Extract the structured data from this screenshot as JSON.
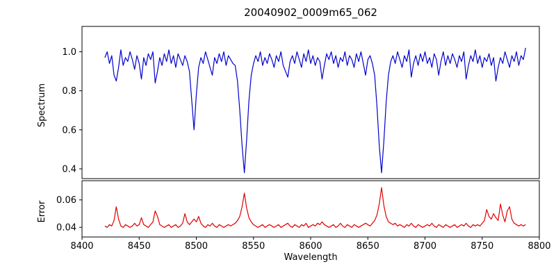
{
  "figure": {
    "title": "20040902_0009m65_062",
    "background": "#ffffff",
    "text_color": "#000000"
  },
  "chart_data": [
    {
      "type": "line",
      "name": "spectrum",
      "ylabel": "Spectrum",
      "color": "#0000cd",
      "xlim": [
        8400,
        8800
      ],
      "ylim": [
        0.35,
        1.13
      ],
      "ytick_values": [
        1.0,
        0.8,
        0.6,
        0.4
      ],
      "ytick_labels": [
        "1.0",
        "0.8",
        "0.6",
        "0.4"
      ],
      "x_start": 8420,
      "x_step": 2,
      "y": [
        0.97,
        1.0,
        0.94,
        0.98,
        0.88,
        0.85,
        0.92,
        1.01,
        0.93,
        0.97,
        0.95,
        1.0,
        0.96,
        0.91,
        0.98,
        0.94,
        0.86,
        0.97,
        0.93,
        0.99,
        0.96,
        1.0,
        0.84,
        0.9,
        0.97,
        0.93,
        0.99,
        0.95,
        1.01,
        0.94,
        0.98,
        0.92,
        0.99,
        0.96,
        0.93,
        0.98,
        0.95,
        0.9,
        0.75,
        0.6,
        0.78,
        0.92,
        0.97,
        0.94,
        1.0,
        0.96,
        0.92,
        0.88,
        0.97,
        0.94,
        0.99,
        0.95,
        1.0,
        0.93,
        0.98,
        0.96,
        0.94,
        0.93,
        0.85,
        0.7,
        0.52,
        0.38,
        0.55,
        0.75,
        0.88,
        0.94,
        0.98,
        0.95,
        1.0,
        0.93,
        0.97,
        0.94,
        0.99,
        0.96,
        0.92,
        0.98,
        0.95,
        1.0,
        0.93,
        0.9,
        0.87,
        0.95,
        0.98,
        0.94,
        1.0,
        0.96,
        0.92,
        0.99,
        0.95,
        1.01,
        0.94,
        0.98,
        0.93,
        0.97,
        0.95,
        0.86,
        0.93,
        0.99,
        0.96,
        1.0,
        0.94,
        0.98,
        0.92,
        0.97,
        0.95,
        1.0,
        0.93,
        0.98,
        0.96,
        0.92,
        0.99,
        0.95,
        1.0,
        0.94,
        0.88,
        0.96,
        0.98,
        0.94,
        0.88,
        0.72,
        0.52,
        0.38,
        0.54,
        0.74,
        0.88,
        0.95,
        0.98,
        0.94,
        1.0,
        0.96,
        0.92,
        0.98,
        0.95,
        1.01,
        0.87,
        0.94,
        0.98,
        0.93,
        0.99,
        0.95,
        1.0,
        0.94,
        0.97,
        0.92,
        0.99,
        0.96,
        0.88,
        0.95,
        1.0,
        0.93,
        0.98,
        0.94,
        0.99,
        0.96,
        0.92,
        0.98,
        0.95,
        1.0,
        0.86,
        0.93,
        0.98,
        0.95,
        1.01,
        0.94,
        0.98,
        0.92,
        0.97,
        0.95,
        0.99,
        0.93,
        0.97,
        0.85,
        0.92,
        0.97,
        0.94,
        1.0,
        0.96,
        0.92,
        0.98,
        0.95,
        1.0,
        0.93,
        0.98,
        0.96,
        1.02
      ]
    },
    {
      "type": "line",
      "name": "error",
      "ylabel": "Error",
      "xlabel": "Wavelength",
      "color": "#e00000",
      "xlim": [
        8400,
        8800
      ],
      "ylim": [
        0.033,
        0.074
      ],
      "ytick_values": [
        0.06,
        0.04
      ],
      "ytick_labels": [
        "0.06",
        "0.04"
      ],
      "xtick_values": [
        8400,
        8450,
        8500,
        8550,
        8600,
        8650,
        8700,
        8750,
        8800
      ],
      "xtick_labels": [
        "8400",
        "8450",
        "8500",
        "8550",
        "8600",
        "8650",
        "8700",
        "8750",
        "8800"
      ],
      "x_start": 8420,
      "x_step": 2,
      "y": [
        0.041,
        0.04,
        0.042,
        0.041,
        0.045,
        0.055,
        0.046,
        0.041,
        0.04,
        0.042,
        0.041,
        0.04,
        0.041,
        0.043,
        0.041,
        0.042,
        0.047,
        0.042,
        0.041,
        0.04,
        0.042,
        0.044,
        0.052,
        0.048,
        0.042,
        0.041,
        0.04,
        0.041,
        0.042,
        0.04,
        0.041,
        0.042,
        0.04,
        0.041,
        0.043,
        0.05,
        0.044,
        0.042,
        0.044,
        0.046,
        0.044,
        0.048,
        0.043,
        0.041,
        0.04,
        0.042,
        0.041,
        0.043,
        0.041,
        0.04,
        0.042,
        0.041,
        0.04,
        0.041,
        0.042,
        0.041,
        0.042,
        0.043,
        0.045,
        0.048,
        0.055,
        0.065,
        0.054,
        0.047,
        0.044,
        0.042,
        0.041,
        0.04,
        0.041,
        0.042,
        0.04,
        0.041,
        0.042,
        0.041,
        0.04,
        0.041,
        0.042,
        0.04,
        0.041,
        0.042,
        0.043,
        0.041,
        0.04,
        0.042,
        0.041,
        0.04,
        0.042,
        0.041,
        0.043,
        0.04,
        0.041,
        0.042,
        0.041,
        0.043,
        0.042,
        0.044,
        0.042,
        0.041,
        0.04,
        0.041,
        0.042,
        0.04,
        0.041,
        0.043,
        0.041,
        0.04,
        0.042,
        0.041,
        0.04,
        0.042,
        0.041,
        0.04,
        0.041,
        0.042,
        0.043,
        0.042,
        0.041,
        0.043,
        0.045,
        0.049,
        0.057,
        0.069,
        0.056,
        0.048,
        0.044,
        0.043,
        0.042,
        0.043,
        0.041,
        0.042,
        0.041,
        0.04,
        0.042,
        0.041,
        0.043,
        0.041,
        0.04,
        0.042,
        0.041,
        0.04,
        0.041,
        0.042,
        0.041,
        0.043,
        0.041,
        0.04,
        0.042,
        0.041,
        0.04,
        0.042,
        0.041,
        0.04,
        0.041,
        0.042,
        0.04,
        0.041,
        0.042,
        0.041,
        0.043,
        0.041,
        0.04,
        0.042,
        0.041,
        0.042,
        0.041,
        0.043,
        0.045,
        0.053,
        0.048,
        0.046,
        0.05,
        0.047,
        0.045,
        0.057,
        0.049,
        0.044,
        0.052,
        0.055,
        0.046,
        0.043,
        0.042,
        0.041,
        0.042,
        0.041,
        0.042
      ]
    }
  ]
}
